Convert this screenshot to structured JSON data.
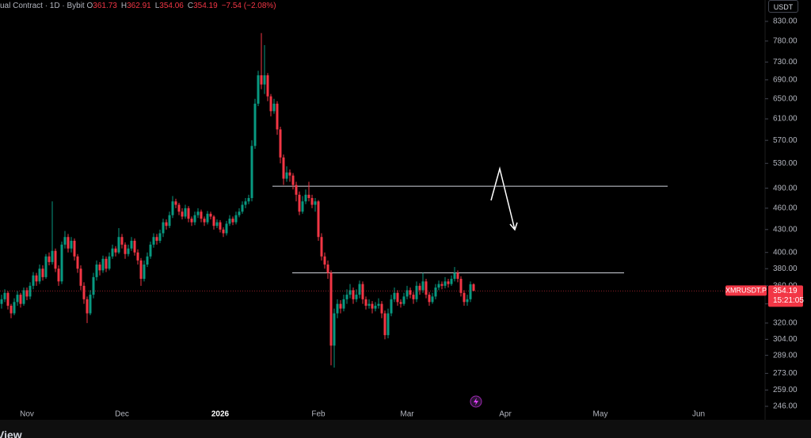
{
  "chart_data": {
    "type": "candlestick",
    "header": {
      "symbol": "ual Contract · 1D · Bybit",
      "ohlc_labels": [
        "O",
        "H",
        "L",
        "C"
      ],
      "change": "−7.54 (−2.08%)"
    },
    "currency": "USDT",
    "ticker": "XMRUSDT.P",
    "countdown": "15:21:05",
    "footer": "View",
    "log_scale": true,
    "up_color": "#089981",
    "down_color": "#f23645",
    "xlim": [
      -0.5,
      240
    ],
    "xticks": [
      {
        "value": 8,
        "label": "Nov"
      },
      {
        "value": 38,
        "label": "Dec"
      },
      {
        "value": 69,
        "label": "2026"
      },
      {
        "value": 100,
        "label": "Feb"
      },
      {
        "value": 128,
        "label": "Mar"
      },
      {
        "value": 159,
        "label": "Apr"
      },
      {
        "value": 189,
        "label": "May"
      },
      {
        "value": 220,
        "label": "Jun"
      }
    ],
    "ylim": [
      246,
      830
    ],
    "yticks": [
      {
        "value": 830,
        "label": "830.00"
      },
      {
        "value": 780,
        "label": "780.00"
      },
      {
        "value": 730,
        "label": "730.00"
      },
      {
        "value": 690,
        "label": "690.00"
      },
      {
        "value": 650,
        "label": "650.00"
      },
      {
        "value": 610,
        "label": "610.00"
      },
      {
        "value": 570,
        "label": "570.00"
      },
      {
        "value": 530,
        "label": "530.00"
      },
      {
        "value": 490,
        "label": "490.00"
      },
      {
        "value": 460,
        "label": "460.00"
      },
      {
        "value": 430,
        "label": "430.00"
      },
      {
        "value": 400,
        "label": "400.00"
      },
      {
        "value": 380,
        "label": "380.00"
      },
      {
        "value": 360,
        "label": "360.00"
      },
      {
        "value": 340,
        "label": "340.00"
      },
      {
        "value": 320,
        "label": "320.00"
      },
      {
        "value": 304,
        "label": "304.00"
      },
      {
        "value": 289,
        "label": "289.00"
      },
      {
        "value": 273,
        "label": "273.00"
      },
      {
        "value": 259,
        "label": "259.00"
      },
      {
        "value": 246,
        "label": "246.00"
      }
    ],
    "hlines": [
      {
        "value": 493,
        "from": 85.5,
        "to": 210.25,
        "color": "#d1d4dc"
      },
      {
        "value": 375,
        "from": 91.75,
        "to": 196.5,
        "color": "#d1d4dc"
      }
    ],
    "candles": [
      [
        340,
        350,
        335,
        345
      ],
      [
        345,
        356,
        342,
        352
      ],
      [
        352,
        354,
        334,
        338
      ],
      [
        338,
        340,
        325,
        330
      ],
      [
        330,
        346,
        328,
        342
      ],
      [
        342,
        354,
        338,
        350
      ],
      [
        350,
        352,
        336,
        340
      ],
      [
        340,
        358,
        338,
        355
      ],
      [
        355,
        358,
        344,
        348
      ],
      [
        348,
        364,
        345,
        360
      ],
      [
        360,
        376,
        356,
        372
      ],
      [
        372,
        375,
        360,
        365
      ],
      [
        365,
        385,
        362,
        380
      ],
      [
        380,
        384,
        366,
        370
      ],
      [
        370,
        398,
        368,
        395
      ],
      [
        395,
        400,
        384,
        388
      ],
      [
        388,
        470,
        385,
        402
      ],
      [
        402,
        405,
        376,
        380
      ],
      [
        380,
        384,
        360,
        365
      ],
      [
        365,
        414,
        362,
        410
      ],
      [
        410,
        428,
        405,
        420
      ],
      [
        420,
        424,
        400,
        405
      ],
      [
        405,
        420,
        400,
        415
      ],
      [
        415,
        418,
        390,
        395
      ],
      [
        395,
        398,
        375,
        380
      ],
      [
        380,
        384,
        355,
        360
      ],
      [
        360,
        364,
        340,
        345
      ],
      [
        345,
        348,
        320,
        330
      ],
      [
        330,
        355,
        328,
        350
      ],
      [
        350,
        375,
        346,
        370
      ],
      [
        370,
        390,
        366,
        385
      ],
      [
        385,
        388,
        372,
        378
      ],
      [
        378,
        396,
        375,
        392
      ],
      [
        392,
        395,
        376,
        380
      ],
      [
        380,
        400,
        378,
        395
      ],
      [
        395,
        410,
        392,
        405
      ],
      [
        405,
        408,
        395,
        400
      ],
      [
        400,
        432,
        398,
        420
      ],
      [
        420,
        424,
        405,
        410
      ],
      [
        410,
        413,
        392,
        398
      ],
      [
        398,
        410,
        395,
        405
      ],
      [
        405,
        420,
        402,
        415
      ],
      [
        415,
        418,
        396,
        400
      ],
      [
        400,
        404,
        385,
        390
      ],
      [
        390,
        393,
        360,
        368
      ],
      [
        368,
        390,
        365,
        385
      ],
      [
        385,
        400,
        382,
        395
      ],
      [
        395,
        414,
        392,
        410
      ],
      [
        410,
        425,
        406,
        420
      ],
      [
        420,
        424,
        410,
        415
      ],
      [
        415,
        430,
        412,
        425
      ],
      [
        425,
        445,
        420,
        440
      ],
      [
        440,
        444,
        430,
        435
      ],
      [
        435,
        455,
        432,
        450
      ],
      [
        450,
        478,
        446,
        470
      ],
      [
        470,
        474,
        460,
        465
      ],
      [
        465,
        468,
        450,
        455
      ],
      [
        455,
        460,
        444,
        448
      ],
      [
        448,
        465,
        445,
        460
      ],
      [
        460,
        463,
        440,
        445
      ],
      [
        445,
        448,
        435,
        440
      ],
      [
        440,
        455,
        436,
        450
      ],
      [
        450,
        460,
        446,
        455
      ],
      [
        455,
        458,
        440,
        445
      ],
      [
        445,
        448,
        435,
        440
      ],
      [
        440,
        456,
        437,
        452
      ],
      [
        452,
        455,
        444,
        448
      ],
      [
        448,
        450,
        430,
        435
      ],
      [
        435,
        444,
        432,
        440
      ],
      [
        440,
        443,
        426,
        430
      ],
      [
        430,
        433,
        420,
        425
      ],
      [
        425,
        442,
        422,
        438
      ],
      [
        438,
        450,
        435,
        445
      ],
      [
        445,
        448,
        436,
        440
      ],
      [
        440,
        455,
        437,
        450
      ],
      [
        450,
        460,
        447,
        455
      ],
      [
        455,
        470,
        452,
        465
      ],
      [
        465,
        475,
        460,
        470
      ],
      [
        470,
        480,
        466,
        475
      ],
      [
        475,
        570,
        470,
        560
      ],
      [
        560,
        650,
        555,
        640
      ],
      [
        640,
        710,
        635,
        700
      ],
      [
        700,
        800,
        670,
        680
      ],
      [
        680,
        770,
        660,
        700
      ],
      [
        700,
        705,
        645,
        655
      ],
      [
        655,
        660,
        615,
        625
      ],
      [
        625,
        650,
        620,
        640
      ],
      [
        640,
        645,
        580,
        590
      ],
      [
        590,
        595,
        530,
        540
      ],
      [
        540,
        545,
        495,
        505
      ],
      [
        505,
        525,
        500,
        515
      ],
      [
        515,
        520,
        500,
        510
      ],
      [
        510,
        514,
        488,
        495
      ],
      [
        495,
        500,
        470,
        480
      ],
      [
        480,
        485,
        450,
        455
      ],
      [
        455,
        478,
        452,
        470
      ],
      [
        470,
        488,
        466,
        480
      ],
      [
        480,
        500,
        470,
        475
      ],
      [
        475,
        480,
        460,
        465
      ],
      [
        465,
        475,
        455,
        470
      ],
      [
        470,
        472,
        415,
        420
      ],
      [
        420,
        425,
        390,
        395
      ],
      [
        395,
        400,
        380,
        385
      ],
      [
        385,
        390,
        368,
        375
      ],
      [
        375,
        378,
        280,
        298
      ],
      [
        298,
        335,
        278,
        330
      ],
      [
        330,
        345,
        325,
        340
      ],
      [
        340,
        344,
        330,
        335
      ],
      [
        335,
        350,
        332,
        345
      ],
      [
        345,
        356,
        340,
        350
      ],
      [
        350,
        362,
        346,
        355
      ],
      [
        355,
        358,
        340,
        345
      ],
      [
        345,
        356,
        342,
        350
      ],
      [
        350,
        366,
        346,
        362
      ],
      [
        362,
        365,
        340,
        345
      ],
      [
        345,
        348,
        334,
        338
      ],
      [
        338,
        345,
        335,
        340
      ],
      [
        340,
        343,
        330,
        335
      ],
      [
        335,
        342,
        332,
        338
      ],
      [
        338,
        346,
        335,
        340
      ],
      [
        340,
        343,
        325,
        330
      ],
      [
        330,
        333,
        304,
        308
      ],
      [
        308,
        335,
        305,
        330
      ],
      [
        330,
        350,
        327,
        345
      ],
      [
        345,
        358,
        342,
        352
      ],
      [
        352,
        355,
        338,
        342
      ],
      [
        342,
        345,
        336,
        340
      ],
      [
        340,
        352,
        338,
        348
      ],
      [
        348,
        360,
        345,
        355
      ],
      [
        355,
        358,
        346,
        350
      ],
      [
        350,
        353,
        340,
        345
      ],
      [
        345,
        365,
        342,
        360
      ],
      [
        360,
        363,
        350,
        355
      ],
      [
        355,
        375,
        352,
        365
      ],
      [
        365,
        368,
        346,
        350
      ],
      [
        350,
        353,
        338,
        342
      ],
      [
        342,
        352,
        340,
        348
      ],
      [
        348,
        362,
        345,
        358
      ],
      [
        358,
        366,
        355,
        362
      ],
      [
        362,
        365,
        356,
        360
      ],
      [
        360,
        370,
        357,
        365
      ],
      [
        365,
        368,
        358,
        362
      ],
      [
        362,
        372,
        360,
        368
      ],
      [
        368,
        382,
        365,
        375
      ],
      [
        375,
        378,
        364,
        368
      ],
      [
        368,
        371,
        348,
        352
      ],
      [
        352,
        355,
        338,
        342
      ],
      [
        342,
        350,
        338,
        345
      ],
      [
        345,
        365,
        342,
        361.73
      ],
      [
        361.73,
        362.91,
        354.06,
        354.19
      ]
    ]
  }
}
